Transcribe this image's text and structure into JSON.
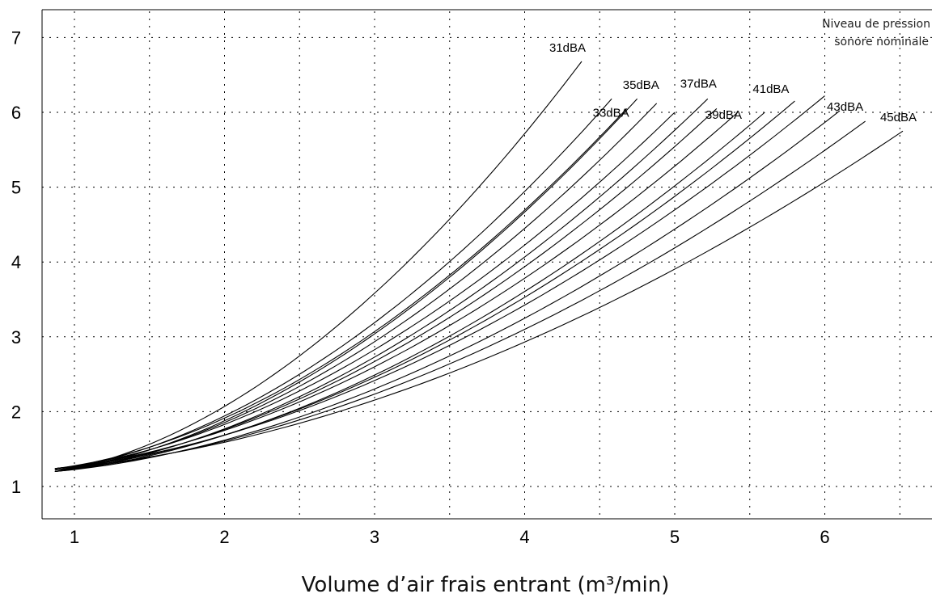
{
  "chart_data": {
    "type": "line",
    "title": "",
    "xlabel": "Volume d’air frais entrant (m³/min)",
    "ylabel": "",
    "legend_title": [
      "Niveau de pression",
      "sonore nominale"
    ],
    "xlim": [
      0.8,
      7.0
    ],
    "ylim": [
      0.55,
      7.3
    ],
    "x_ticks": [
      "1",
      "2",
      "3",
      "4",
      "5",
      "6"
    ],
    "y_ticks": [
      "1",
      "2",
      "3",
      "4",
      "5",
      "6",
      "7"
    ],
    "grid": true,
    "series": [
      {
        "name": "31dBA",
        "x_end": 4.38,
        "y_end": 6.68,
        "labeled": true
      },
      {
        "name": "",
        "x_end": 4.58,
        "y_end": 6.18,
        "labeled": false
      },
      {
        "name": "33dBA",
        "x_end": 4.68,
        "y_end": 6.05,
        "labeled": true
      },
      {
        "name": "",
        "x_end": 4.75,
        "y_end": 6.18,
        "labeled": false
      },
      {
        "name": "35dBA",
        "x_end": 4.88,
        "y_end": 6.12,
        "labeled": true
      },
      {
        "name": "",
        "x_end": 5.0,
        "y_end": 6.0,
        "labeled": false
      },
      {
        "name": "37dBA",
        "x_end": 5.22,
        "y_end": 6.18,
        "labeled": true
      },
      {
        "name": "",
        "x_end": 5.28,
        "y_end": 6.05,
        "labeled": false
      },
      {
        "name": "39dBA",
        "x_end": 5.42,
        "y_end": 6.0,
        "labeled": true
      },
      {
        "name": "",
        "x_end": 5.6,
        "y_end": 6.0,
        "labeled": false
      },
      {
        "name": "41dBA",
        "x_end": 5.8,
        "y_end": 6.15,
        "labeled": true
      },
      {
        "name": "",
        "x_end": 6.0,
        "y_end": 6.22,
        "labeled": false
      },
      {
        "name": "43dBA",
        "x_end": 6.1,
        "y_end": 6.02,
        "labeled": true
      },
      {
        "name": "",
        "x_end": 6.27,
        "y_end": 5.88,
        "labeled": false
      },
      {
        "name": "45dBA",
        "x_end": 6.52,
        "y_end": 5.75,
        "labeled": true
      }
    ],
    "y_start": 1.2
  }
}
